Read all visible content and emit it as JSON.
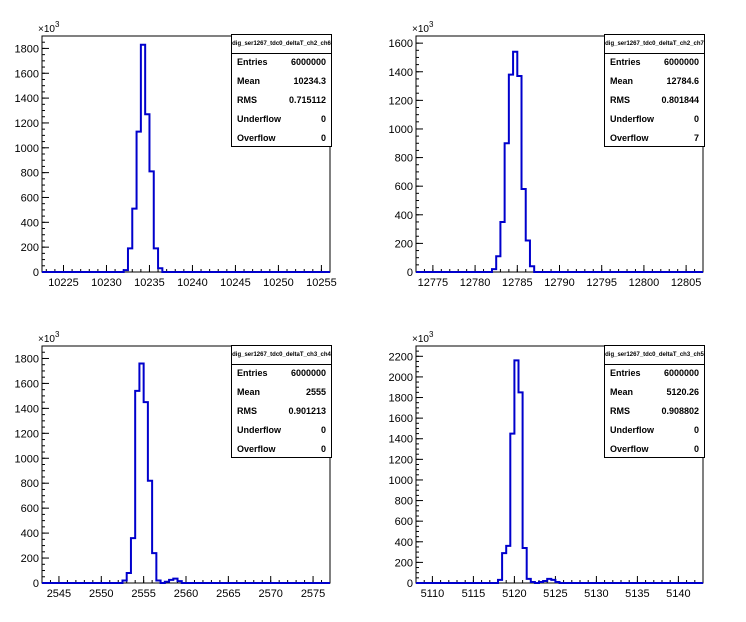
{
  "chart_data": [
    {
      "type": "bar",
      "title": "",
      "stats": {
        "name": "dig_ser1267_tdc0_deltaT_ch2_ch6",
        "rows": [
          {
            "key": "Entries",
            "value": "6000000"
          },
          {
            "key": "Mean",
            "value": "10234.3"
          },
          {
            "key": "RMS",
            "value": "0.715112"
          },
          {
            "key": "Underflow",
            "value": "0"
          },
          {
            "key": "Overflow",
            "value": "0"
          }
        ]
      },
      "exponent_label": "×10",
      "exponent_sup": "3",
      "xlim": [
        10222.5,
        10256
      ],
      "ylim": [
        0,
        1900
      ],
      "xticks": [
        10225,
        10230,
        10235,
        10240,
        10245,
        10250,
        10255
      ],
      "yticks": [
        0,
        200,
        400,
        600,
        800,
        1000,
        1200,
        1400,
        1600,
        1800
      ],
      "bin_width": 0.5,
      "x": [
        10232,
        10232.5,
        10233,
        10233.5,
        10234,
        10234.5,
        10235,
        10235.5,
        10236
      ],
      "values": [
        15,
        190,
        510,
        1130,
        1830,
        1270,
        810,
        190,
        30
      ],
      "color": "#0000cc"
    },
    {
      "type": "bar",
      "title": "",
      "stats": {
        "name": "dig_ser1267_tdc0_deltaT_ch2_ch7",
        "rows": [
          {
            "key": "Entries",
            "value": "6000000"
          },
          {
            "key": "Mean",
            "value": "12784.6"
          },
          {
            "key": "RMS",
            "value": "0.801844"
          },
          {
            "key": "Underflow",
            "value": "0"
          },
          {
            "key": "Overflow",
            "value": "7"
          }
        ]
      },
      "exponent_label": "×10",
      "exponent_sup": "3",
      "xlim": [
        12773,
        12807
      ],
      "ylim": [
        0,
        1650
      ],
      "xticks": [
        12775,
        12780,
        12785,
        12790,
        12795,
        12800,
        12805
      ],
      "yticks": [
        0,
        200,
        400,
        600,
        800,
        1000,
        1200,
        1400,
        1600
      ],
      "bin_width": 0.5,
      "x": [
        12782,
        12782.5,
        12783,
        12783.5,
        12784,
        12784.5,
        12785,
        12785.5,
        12786,
        12786.5
      ],
      "values": [
        20,
        110,
        350,
        900,
        1380,
        1540,
        1370,
        580,
        220,
        40
      ],
      "color": "#0000cc"
    },
    {
      "type": "bar",
      "title": "",
      "stats": {
        "name": "dig_ser1267_tdc0_deltaT_ch3_ch4",
        "rows": [
          {
            "key": "Entries",
            "value": "6000000"
          },
          {
            "key": "Mean",
            "value": "2555"
          },
          {
            "key": "RMS",
            "value": "0.901213"
          },
          {
            "key": "Underflow",
            "value": "0"
          },
          {
            "key": "Overflow",
            "value": "0"
          }
        ]
      },
      "exponent_label": "×10",
      "exponent_sup": "3",
      "xlim": [
        2543,
        2577
      ],
      "ylim": [
        0,
        1900
      ],
      "xticks": [
        2545,
        2550,
        2555,
        2560,
        2565,
        2570,
        2575
      ],
      "yticks": [
        0,
        200,
        400,
        600,
        800,
        1000,
        1200,
        1400,
        1600,
        1800
      ],
      "bin_width": 0.5,
      "x": [
        2552.5,
        2553,
        2553.5,
        2554,
        2554.5,
        2555,
        2555.5,
        2556,
        2556.5,
        2557.5,
        2558,
        2558.5,
        2559
      ],
      "values": [
        20,
        80,
        360,
        1540,
        1760,
        1450,
        820,
        240,
        20,
        10,
        25,
        35,
        15
      ],
      "color": "#0000cc"
    },
    {
      "type": "bar",
      "title": "",
      "stats": {
        "name": "dig_ser1267_tdc0_deltaT_ch3_ch5",
        "rows": [
          {
            "key": "Entries",
            "value": "6000000"
          },
          {
            "key": "Mean",
            "value": "5120.26"
          },
          {
            "key": "RMS",
            "value": "0.908802"
          },
          {
            "key": "Underflow",
            "value": "0"
          },
          {
            "key": "Overflow",
            "value": "0"
          }
        ]
      },
      "exponent_label": "×10",
      "exponent_sup": "3",
      "xlim": [
        5108,
        5143
      ],
      "ylim": [
        0,
        2300
      ],
      "xticks": [
        5110,
        5115,
        5120,
        5125,
        5130,
        5135,
        5140
      ],
      "yticks": [
        0,
        200,
        400,
        600,
        800,
        1000,
        1200,
        1400,
        1600,
        1800,
        2000,
        2200
      ],
      "bin_width": 0.5,
      "x": [
        5118,
        5118.5,
        5119,
        5119.5,
        5120,
        5120.5,
        5121,
        5121.5,
        5122,
        5123,
        5123.5,
        5124,
        5124.5,
        5125
      ],
      "values": [
        30,
        290,
        360,
        1450,
        2160,
        1850,
        340,
        40,
        10,
        10,
        20,
        40,
        30,
        10
      ],
      "color": "#0000cc"
    }
  ]
}
